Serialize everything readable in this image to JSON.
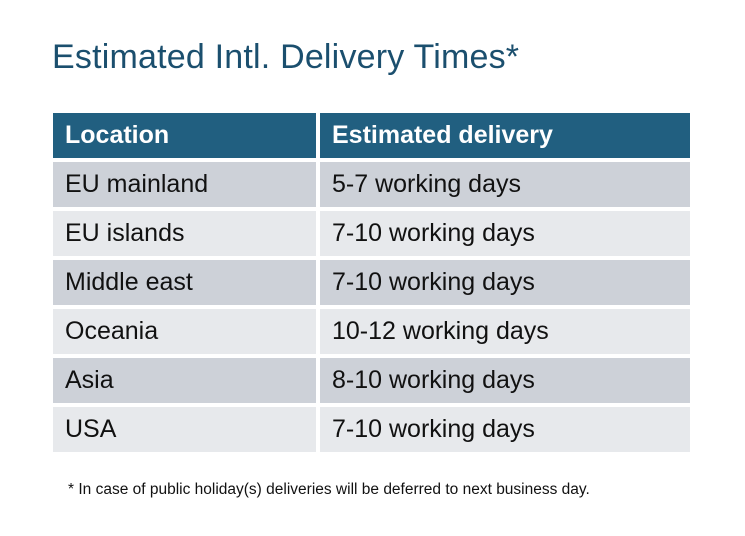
{
  "title": "Estimated Intl. Delivery Times*",
  "table": {
    "headers": [
      "Location",
      "Estimated delivery"
    ],
    "rows": [
      [
        "EU mainland",
        "5-7 working days"
      ],
      [
        "EU islands",
        "7-10 working days"
      ],
      [
        "Middle east",
        "7-10 working days"
      ],
      [
        "Oceania",
        "10-12 working days"
      ],
      [
        "Asia",
        "8-10 working days"
      ],
      [
        "USA",
        "7-10 working days"
      ]
    ]
  },
  "footnote": "* In case of public holiday(s) deliveries will be deferred to next business day.",
  "colors": {
    "title": "#1B4F6E",
    "header_bg": "#215F80",
    "row_odd": "#CDD1D8",
    "row_even": "#E7E9EC"
  }
}
